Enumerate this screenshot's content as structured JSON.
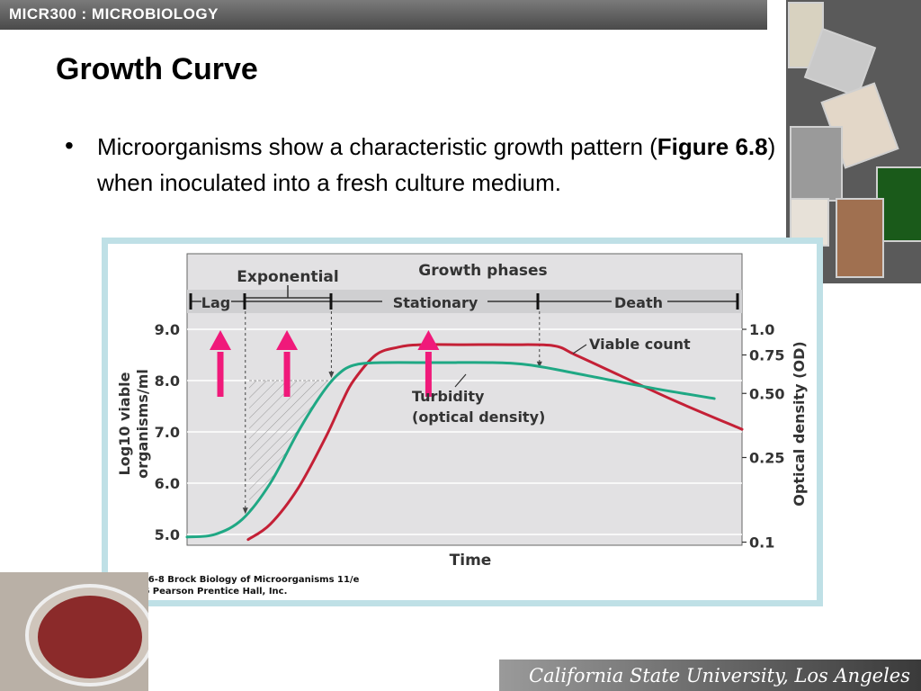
{
  "header": {
    "course": "MICR300 : MICROBIOLOGY"
  },
  "slide": {
    "title": "Growth Curve",
    "bullet": {
      "marker": "•",
      "text_before": "Microorganisms show a characteristic growth pattern (",
      "bold": "Figure 6.8",
      "text_after": ") when inoculated into a fresh culture medium."
    }
  },
  "footer": {
    "institution": "California State University, Los Angeles"
  },
  "chart_data": {
    "type": "line",
    "header": "Growth phases",
    "xlabel": "Time",
    "ylabel_left_line1": "Log10 viable",
    "ylabel_left_line2": "organisms/ml",
    "ylabel_right": "Optical density (OD)",
    "y_left_ticks": [
      "9.0",
      "8.0",
      "7.0",
      "6.0",
      "5.0"
    ],
    "y_left_values": [
      9.0,
      8.0,
      7.0,
      6.0,
      5.0
    ],
    "y_right_ticks": [
      "1.0",
      "0.75",
      "0.50",
      "0.25",
      "0.1"
    ],
    "ylim": [
      5.0,
      9.0
    ],
    "grid": true,
    "phases": {
      "lag": "Lag",
      "exponential": "Exponential",
      "stationary": "Stationary",
      "death": "Death"
    },
    "series": [
      {
        "name": "Viable count",
        "color": "#c42036",
        "x": [
          0.11,
          0.15,
          0.2,
          0.25,
          0.28,
          0.3,
          0.34,
          0.38,
          0.42,
          0.5,
          0.58,
          0.66,
          0.7,
          0.78,
          0.88,
          1.0
        ],
        "y": [
          4.9,
          5.2,
          5.9,
          6.9,
          7.6,
          8.0,
          8.5,
          8.65,
          8.7,
          8.7,
          8.7,
          8.68,
          8.5,
          8.1,
          7.6,
          7.05
        ]
      },
      {
        "name": "Turbidity\n(optical density)",
        "label_line1": "Turbidity",
        "label_line2": "(optical density)",
        "color": "#1fa884",
        "x": [
          0.0,
          0.05,
          0.1,
          0.15,
          0.2,
          0.24,
          0.27,
          0.3,
          0.35,
          0.45,
          0.55,
          0.62,
          0.72,
          0.84,
          0.95
        ],
        "y": [
          4.95,
          5.0,
          5.3,
          6.0,
          7.0,
          7.7,
          8.1,
          8.3,
          8.35,
          8.35,
          8.35,
          8.3,
          8.1,
          7.85,
          7.65
        ]
      }
    ],
    "arrow_color": "#f0197a",
    "caption_line1": "Figure 6-8  Brock Biology of Microorganisms 11/e",
    "caption_line2": "© 2006 Pearson Prentice Hall, Inc."
  }
}
